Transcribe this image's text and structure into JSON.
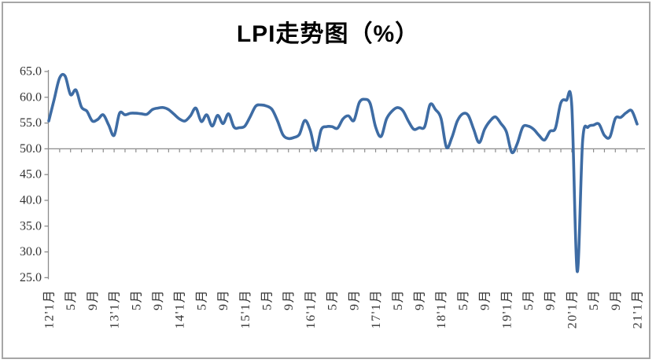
{
  "title": "LPI走势图（%）",
  "colors": {
    "line": "#3E6CA4",
    "axis": "#8C8C8C",
    "tick_text": "#333333",
    "frame_border": "#A6A6A6",
    "title_color": "#000000",
    "background": "#FFFFFF"
  },
  "chart_data": {
    "type": "line",
    "title": "LPI走势图（%）",
    "series_name": "LPI",
    "unit": "%",
    "frequency": "monthly",
    "start_month": "2012-01",
    "end_month": "2021-01",
    "smoothed": true,
    "grid": false,
    "legend": "none",
    "ylim": [
      25.0,
      65.0
    ],
    "ytick_step": 5.0,
    "x_axis_crosses_at_y": 50.0,
    "y_tick_labels": [
      "65.0",
      "60.0",
      "55.0",
      "50.0",
      "45.0",
      "40.0",
      "35.0",
      "30.0",
      "25.0"
    ],
    "x_tick_labels": [
      "12'1月",
      "5月",
      "9月",
      "13'1月",
      "5月",
      "9月",
      "14'1月",
      "5月",
      "9月",
      "15'1月",
      "5月",
      "9月",
      "16'1月",
      "5月",
      "9月",
      "17'1月",
      "5月",
      "9月",
      "18'1月",
      "5月",
      "9月",
      "19'1月",
      "5月",
      "9月",
      "20'1月",
      "5月",
      "9月",
      "21'1月"
    ],
    "x_label_every_n_months": 4,
    "values": [
      55.4,
      59.6,
      63.8,
      64.1,
      60.5,
      61.4,
      58.1,
      57.3,
      55.4,
      55.7,
      56.6,
      54.6,
      52.6,
      56.9,
      56.6,
      56.9,
      56.9,
      56.8,
      56.7,
      57.6,
      57.9,
      58.0,
      57.6,
      56.7,
      55.8,
      55.4,
      56.4,
      57.9,
      55.3,
      56.6,
      54.4,
      56.5,
      54.9,
      56.8,
      54.2,
      54.1,
      54.4,
      56.3,
      58.3,
      58.5,
      58.3,
      57.6,
      55.4,
      52.7,
      52.0,
      52.2,
      52.8,
      55.5,
      53.6,
      49.7,
      53.7,
      54.3,
      54.3,
      54.0,
      55.8,
      56.4,
      55.5,
      59.0,
      59.6,
      58.8,
      54.2,
      52.4,
      55.8,
      57.3,
      58.0,
      57.4,
      55.4,
      53.8,
      54.1,
      54.3,
      58.6,
      57.6,
      55.9,
      50.3,
      52.2,
      55.4,
      56.8,
      56.5,
      53.8,
      51.2,
      53.8,
      55.4,
      56.2,
      54.9,
      53.3,
      49.3,
      51.0,
      54.2,
      54.4,
      53.8,
      52.6,
      51.7,
      53.4,
      54.0,
      58.9,
      59.4,
      58.4,
      26.2,
      51.5,
      54.2,
      54.6,
      54.8,
      52.6,
      52.3,
      55.9,
      56.1,
      57.0,
      57.4,
      54.8
    ]
  }
}
